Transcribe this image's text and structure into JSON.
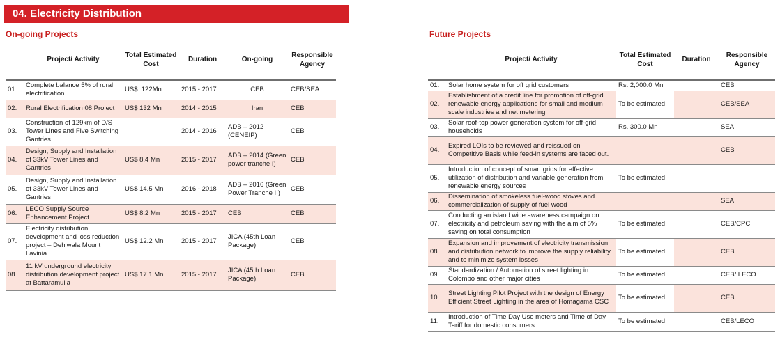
{
  "banner": "04.  Electricity Distribution",
  "ongoing": {
    "title": "On-going Projects",
    "headers": {
      "activity": "Project/ Activity",
      "cost": "Total Estimated Cost",
      "duration": "Duration",
      "ongoing": "On-going",
      "agency": "Responsible Agency"
    },
    "rows": [
      {
        "no": "01.",
        "activity": "Complete balance 5% of rural electrification",
        "cost": "US$. 122Mn",
        "duration": "2015 - 2017",
        "ongoing": "CEB",
        "agency": "CEB/SEA"
      },
      {
        "no": "02.",
        "activity": "Rural Electrification 08 Project",
        "cost": "US$ 132 Mn",
        "duration": "2014 - 2015",
        "ongoing": "Iran",
        "agency": "CEB"
      },
      {
        "no": "03.",
        "activity": "Construction of 129km of D/S Tower Lines and Five Switching Gantries",
        "cost": "",
        "duration": "2014 - 2016",
        "ongoing": "ADB – 2012 (CENEIP)",
        "agency": "CEB"
      },
      {
        "no": "04.",
        "activity": "Design, Supply and Installation of 33kV Tower Lines and Gantries",
        "cost": "US$ 8.4 Mn",
        "duration": "2015 - 2017",
        "ongoing": "ADB – 2014 (Green power tranche I)",
        "agency": "CEB"
      },
      {
        "no": "05.",
        "activity": "Design, Supply and Installation of 33kV Tower Lines and Gantries",
        "cost": "US$ 14.5 Mn",
        "duration": "2016 - 2018",
        "ongoing": "ADB – 2016 (Green Power Tranche II)",
        "agency": "CEB"
      },
      {
        "no": "06.",
        "activity": "LECO Supply Source Enhancement Project",
        "cost": "US$ 8.2 Mn",
        "duration": "2015 - 2017",
        "ongoing": "CEB",
        "agency": "CEB"
      },
      {
        "no": "07.",
        "activity": "Electricity distribution development and loss reduction project – Dehiwala Mount Lavinia",
        "cost": "US$ 12.2 Mn",
        "duration": "2015 - 2017",
        "ongoing": "JICA (45th Loan Package)",
        "agency": "CEB"
      },
      {
        "no": "08.",
        "activity": "11 kV underground electricity distribution development project at Battaramulla",
        "cost": "US$ 17.1 Mn",
        "duration": "2015 - 2017",
        "ongoing": "JICA (45th Loan Package)",
        "agency": "CEB"
      }
    ]
  },
  "future": {
    "title": "Future Projects",
    "headers": {
      "activity": "Project/ Activity",
      "cost": "Total Estimated Cost",
      "duration": "Duration",
      "agency": "Responsible Agency"
    },
    "rows": [
      {
        "no": "01.",
        "activity": "Solar home system for off grid customers",
        "cost": "Rs. 2,000.0 Mn",
        "duration": "",
        "agency": "CEB"
      },
      {
        "no": "02.",
        "activity": "Establishment of a credit line for promotion of off-grid renewable energy applications for small and medium scale industries and net metering",
        "cost": "To be estimated",
        "duration": "",
        "agency": "CEB/SEA"
      },
      {
        "no": "03.",
        "activity": "Solar roof-top power generation system for off-grid households",
        "cost": "Rs. 300.0 Mn",
        "duration": "",
        "agency": "SEA"
      },
      {
        "no": "04.",
        "activity": "Expired LOIs to be reviewed and reissued on Competitive Basis while feed-in systems are faced out.",
        "cost": "",
        "duration": "",
        "agency": "CEB"
      },
      {
        "no": "05.",
        "activity": "Introduction of concept of smart grids for effective utilization of distribution and variable generation from renewable energy sources",
        "cost": "To be estimated",
        "duration": "",
        "agency": ""
      },
      {
        "no": "06.",
        "activity": "Dissemination of smokeless fuel-wood stoves and commercialization of supply of fuel wood",
        "cost": "",
        "duration": "",
        "agency": "SEA"
      },
      {
        "no": "07.",
        "activity": "Conducting an island wide awareness campaign on electricity and petroleum saving with the aim of 5% saving on total consumption",
        "cost": "To be estimated",
        "duration": "",
        "agency": "CEB/CPC"
      },
      {
        "no": "08.",
        "activity": "Expansion and improvement of electricity transmission and distribution network to improve the supply reliability and to minimize system losses",
        "cost": "To be estimated",
        "duration": "",
        "agency": "CEB"
      },
      {
        "no": "09.",
        "activity": "Standardization / Automation of street lighting in Colombo and other major cities",
        "cost": "To be estimated",
        "duration": "",
        "agency": "CEB/ LECO"
      },
      {
        "no": "10.",
        "activity": "Street Lighting Pilot Project with the design of Energy Efficient Street Lighting in the area of Homagama CSC",
        "cost": "To be estimated",
        "duration": "",
        "agency": "CEB"
      },
      {
        "no": "11.",
        "activity": "Introduction of Time Day Use meters and Time of Day Tariff for domestic consumers",
        "cost": "To be estimated",
        "duration": "",
        "agency": "CEB/LECO"
      }
    ]
  }
}
